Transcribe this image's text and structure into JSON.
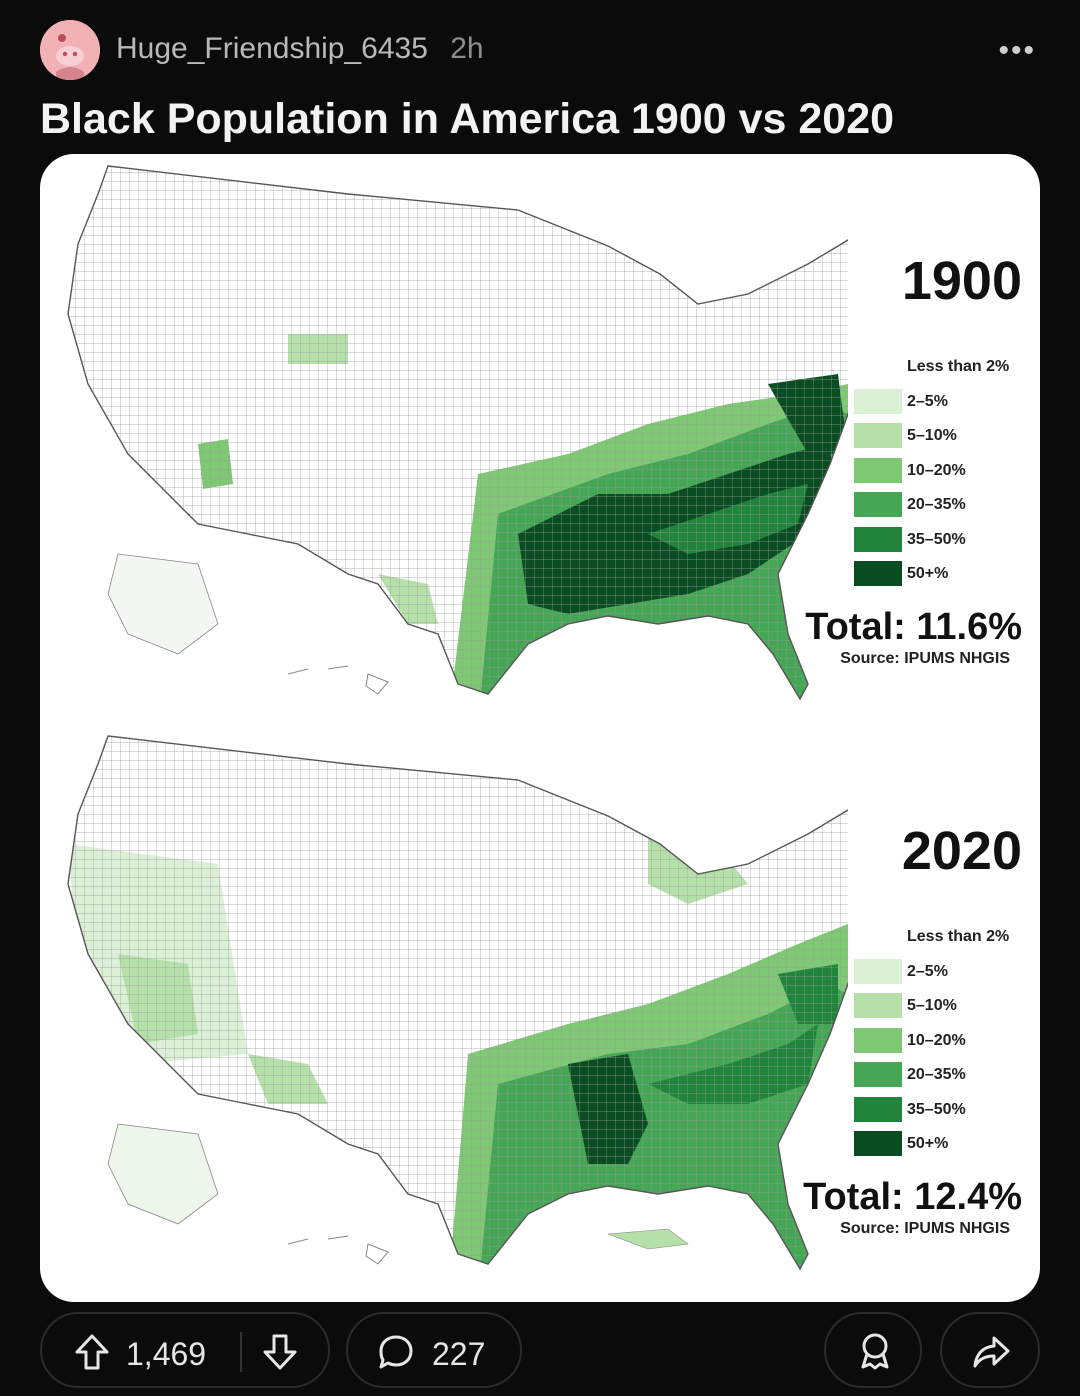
{
  "post": {
    "username": "Huge_Friendship_6435",
    "time": "2h",
    "title": "Black Population in America 1900 vs 2020"
  },
  "maps": [
    {
      "year": "1900",
      "legend": [
        {
          "label": "Less than 2%",
          "color": "#ffffff"
        },
        {
          "label": "2–5%",
          "color": "#dcf0d7"
        },
        {
          "label": "5–10%",
          "color": "#b5e0aa"
        },
        {
          "label": "10–20%",
          "color": "#7fc874"
        },
        {
          "label": "20–35%",
          "color": "#45a655"
        },
        {
          "label": "35–50%",
          "color": "#20843c"
        },
        {
          "label": "50+%",
          "color": "#0a4d22"
        }
      ],
      "total": "Total: 11.6%",
      "source": "Source: IPUMS NHGIS"
    },
    {
      "year": "2020",
      "legend": [
        {
          "label": "Less than 2%",
          "color": "#ffffff"
        },
        {
          "label": "2–5%",
          "color": "#dcf0d7"
        },
        {
          "label": "5–10%",
          "color": "#b5e0aa"
        },
        {
          "label": "10–20%",
          "color": "#7fc874"
        },
        {
          "label": "20–35%",
          "color": "#45a655"
        },
        {
          "label": "35–50%",
          "color": "#20843c"
        },
        {
          "label": "50+%",
          "color": "#0a4d22"
        }
      ],
      "total": "Total: 12.4%",
      "source": "Source: IPUMS NHGIS"
    }
  ],
  "actions": {
    "upvotes": "1,469",
    "comments": "227",
    "icons": [
      "upvote-icon",
      "downvote-icon",
      "comment-icon",
      "award-icon",
      "share-icon"
    ]
  },
  "colors": {
    "background": "#0b0b0b",
    "avatar": "#f2b1b5"
  }
}
